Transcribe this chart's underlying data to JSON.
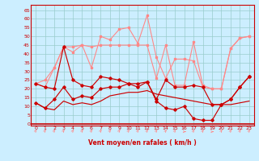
{
  "x": [
    0,
    1,
    2,
    3,
    4,
    5,
    6,
    7,
    8,
    9,
    10,
    11,
    12,
    13,
    14,
    15,
    16,
    17,
    18,
    19,
    20,
    21,
    22,
    23
  ],
  "line_light1": [
    23,
    21,
    32,
    44,
    41,
    45,
    32,
    50,
    48,
    54,
    55,
    46,
    62,
    38,
    26,
    37,
    37,
    36,
    21,
    20,
    20,
    43,
    49,
    50
  ],
  "line_light2": [
    23,
    25,
    32,
    44,
    44,
    45,
    44,
    45,
    45,
    45,
    45,
    45,
    45,
    26,
    45,
    22,
    22,
    47,
    22,
    20,
    20,
    43,
    49,
    50
  ],
  "line_dark1": [
    23,
    21,
    20,
    44,
    25,
    22,
    21,
    27,
    26,
    25,
    23,
    23,
    24,
    14,
    25,
    21,
    21,
    22,
    21,
    11,
    11,
    14,
    21,
    27
  ],
  "line_dark2": [
    12,
    9,
    14,
    21,
    14,
    16,
    15,
    20,
    21,
    21,
    23,
    21,
    24,
    13,
    9,
    8,
    10,
    3,
    2,
    2,
    11,
    14,
    21,
    27
  ],
  "line_dark3": [
    12,
    9,
    8,
    13,
    11,
    12,
    11,
    13,
    16,
    17,
    18,
    18,
    19,
    17,
    16,
    15,
    14,
    13,
    12,
    11,
    11,
    11,
    12,
    13
  ],
  "color_dark": "#cc0000",
  "color_light": "#ff8888",
  "bg_color": "#cceeff",
  "grid_color": "#99cccc",
  "xlabel": "Vent moyen/en rafales ( km/h )",
  "yticks": [
    0,
    5,
    10,
    15,
    20,
    25,
    30,
    35,
    40,
    45,
    50,
    55,
    60,
    65
  ],
  "ylim": [
    -1,
    68
  ],
  "xlim": [
    -0.5,
    23.5
  ]
}
